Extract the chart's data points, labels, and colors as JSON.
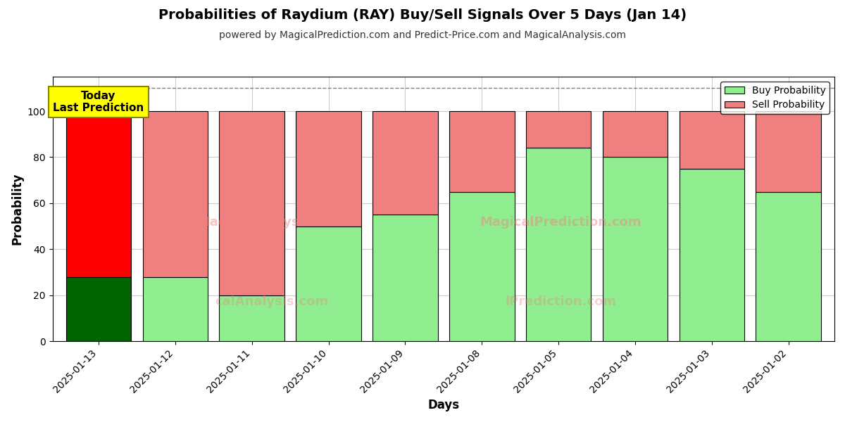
{
  "title": "Probabilities of Raydium (RAY) Buy/Sell Signals Over 5 Days (Jan 14)",
  "subtitle": "powered by MagicalPrediction.com and Predict-Price.com and MagicalAnalysis.com",
  "xlabel": "Days",
  "ylabel": "Probability",
  "categories": [
    "2025-01-13",
    "2025-01-12",
    "2025-01-11",
    "2025-01-10",
    "2025-01-09",
    "2025-01-08",
    "2025-01-05",
    "2025-01-04",
    "2025-01-03",
    "2025-01-02"
  ],
  "buy_values": [
    28,
    28,
    20,
    50,
    55,
    65,
    84,
    80,
    75,
    65
  ],
  "sell_values": [
    72,
    72,
    80,
    50,
    45,
    35,
    16,
    20,
    25,
    35
  ],
  "today_buy_color": "#006400",
  "today_sell_color": "#ff0000",
  "buy_color": "#90EE90",
  "sell_color": "#F08080",
  "today_annotation": "Today\nLast Prediction",
  "annotation_bg_color": "#FFFF00",
  "ylim": [
    0,
    115
  ],
  "yticks": [
    0,
    20,
    40,
    60,
    80,
    100
  ],
  "dashed_line_y": 110,
  "legend_buy_label": "Buy Probability",
  "legend_sell_label": "Sell Probability",
  "background_color": "#ffffff",
  "grid_color": "#cccccc",
  "bar_edge_color": "#000000",
  "bar_width": 0.85
}
